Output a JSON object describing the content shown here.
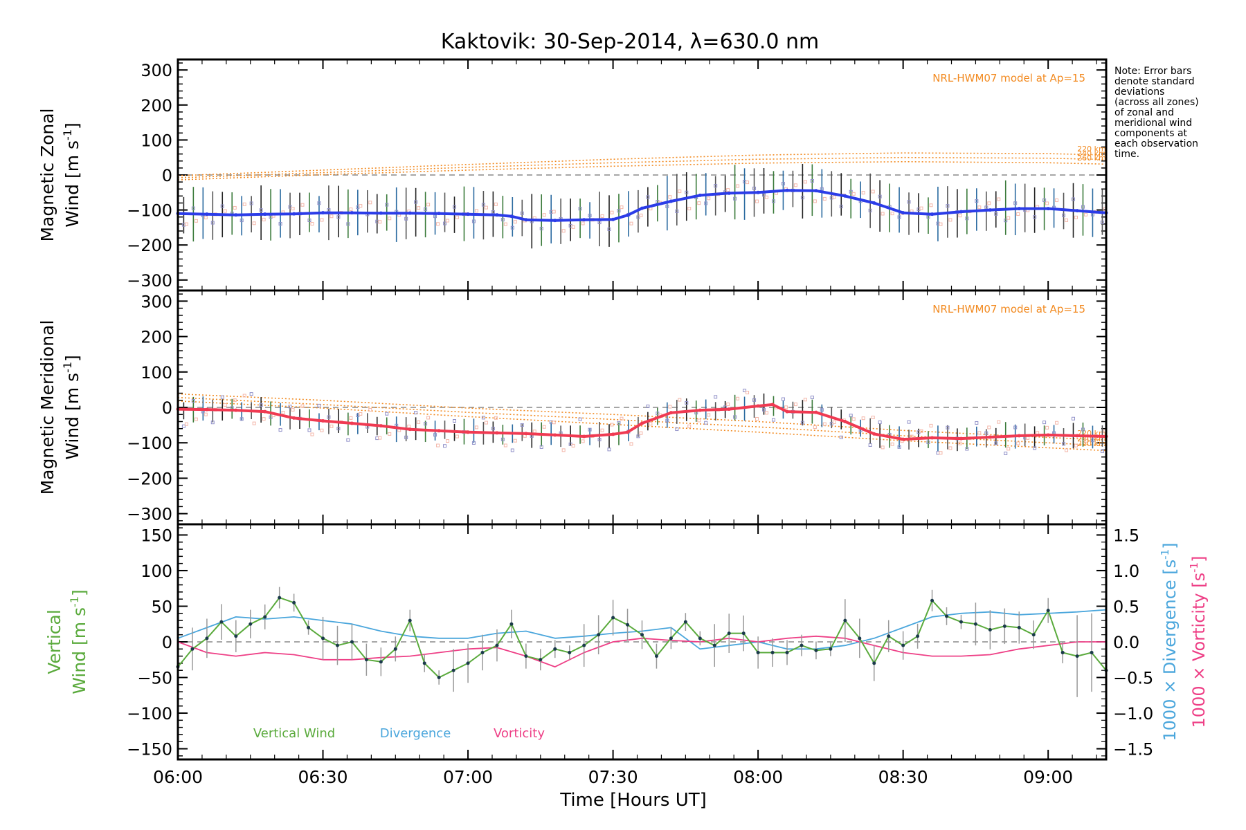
{
  "title": "Kaktovik: 30-Sep-2014, λ=630.0 nm",
  "note": [
    "Note: Error bars",
    "denote standard",
    "deviations",
    "(across all zones)",
    "of zonal and",
    "meridional wind",
    "components at",
    "each observation",
    "time."
  ],
  "x_axis": {
    "label": "Time [Hours UT]",
    "ticks": [
      "06:00",
      "06:30",
      "07:00",
      "07:30",
      "08:00",
      "08:30",
      "09:00"
    ],
    "tick_hours": [
      6.0,
      6.5,
      7.0,
      7.5,
      8.0,
      8.5,
      9.0
    ],
    "range_hours": [
      6.0,
      9.2
    ]
  },
  "colors": {
    "zonal": "#2b3ce8",
    "meridional": "#f03a52",
    "model": "#f28a20",
    "vertical": "#5aaa3c",
    "divergence": "#4aa6dc",
    "vorticity": "#ee3f86",
    "error_bar": "#222222",
    "zone_marker": "#9090c8"
  },
  "chart_data": [
    {
      "type": "line",
      "panel": "zonal",
      "ylabel_line1": "Magnetic Zonal",
      "ylabel_line2": "Wind",
      "ylabel_unit": "[m s",
      "ylabel_exp": "-1",
      "ylabel_close": "]",
      "ylim": [
        -330,
        330
      ],
      "yticks": [
        -300,
        -200,
        -100,
        0,
        100,
        200,
        300
      ],
      "ytick_labels": [
        "−300",
        "−200",
        "−100",
        "0",
        "100",
        "200",
        "300"
      ],
      "model_label": "NRL-HWM07 model at Ap=15",
      "model_series": [
        {
          "name": "220 km",
          "x": [
            6.0,
            6.5,
            7.0,
            7.5,
            8.0,
            8.5,
            9.0,
            9.2
          ],
          "y": [
            -2,
            14,
            30,
            45,
            57,
            63,
            61,
            57
          ]
        },
        {
          "name": "240 km",
          "x": [
            6.0,
            6.5,
            7.0,
            7.5,
            8.0,
            8.5,
            9.0,
            9.2
          ],
          "y": [
            -8,
            7,
            22,
            35,
            45,
            50,
            48,
            44
          ]
        },
        {
          "name": "260 km",
          "x": [
            6.0,
            6.5,
            7.0,
            7.5,
            8.0,
            8.5,
            9.0,
            9.2
          ],
          "y": [
            -14,
            1,
            14,
            25,
            34,
            38,
            35,
            31
          ]
        }
      ],
      "series": [
        {
          "name": "Magnetic Zonal Wind",
          "x": [
            6.0,
            6.1,
            6.2,
            6.3,
            6.4,
            6.5,
            6.6,
            6.7,
            6.8,
            6.9,
            7.0,
            7.1,
            7.15,
            7.2,
            7.3,
            7.4,
            7.5,
            7.55,
            7.6,
            7.7,
            7.8,
            7.9,
            8.0,
            8.1,
            8.2,
            8.3,
            8.4,
            8.5,
            8.6,
            8.7,
            8.8,
            8.9,
            9.0,
            9.1,
            9.2
          ],
          "y": [
            -110,
            -112,
            -114,
            -112,
            -111,
            -108,
            -108,
            -109,
            -109,
            -110,
            -112,
            -114,
            -118,
            -128,
            -130,
            -128,
            -127,
            -115,
            -95,
            -75,
            -58,
            -52,
            -50,
            -44,
            -45,
            -60,
            -80,
            -108,
            -112,
            -105,
            -100,
            -96,
            -96,
            -102,
            -108
          ]
        }
      ],
      "error_bar_sd": 65
    },
    {
      "type": "line",
      "panel": "meridional",
      "ylabel_line1": "Magnetic Meridional",
      "ylabel_line2": "Wind",
      "ylabel_unit": "[m s",
      "ylabel_exp": "-1",
      "ylabel_close": "]",
      "ylim": [
        -330,
        330
      ],
      "yticks": [
        -300,
        -200,
        -100,
        0,
        100,
        200,
        300
      ],
      "ytick_labels": [
        "−300",
        "−200",
        "−100",
        "0",
        "100",
        "200",
        "300"
      ],
      "model_label": "NRL-HWM07 model at Ap=15",
      "model_series": [
        {
          "name": "220 km",
          "x": [
            6.0,
            6.5,
            7.0,
            7.5,
            8.0,
            8.5,
            9.0,
            9.2
          ],
          "y": [
            38,
            20,
            -2,
            -20,
            -40,
            -65,
            -85,
            -92
          ]
        },
        {
          "name": "240 km",
          "x": [
            6.0,
            6.5,
            7.0,
            7.5,
            8.0,
            8.5,
            9.0,
            9.2
          ],
          "y": [
            28,
            8,
            -14,
            -34,
            -55,
            -80,
            -100,
            -108
          ]
        },
        {
          "name": "260 km",
          "x": [
            6.0,
            6.5,
            7.0,
            7.5,
            8.0,
            8.5,
            9.0,
            9.2
          ],
          "y": [
            18,
            -2,
            -26,
            -48,
            -70,
            -94,
            -114,
            -122
          ]
        }
      ],
      "series": [
        {
          "name": "Magnetic Meridional Wind",
          "x": [
            6.0,
            6.1,
            6.2,
            6.3,
            6.4,
            6.5,
            6.6,
            6.7,
            6.8,
            6.9,
            7.0,
            7.1,
            7.2,
            7.3,
            7.4,
            7.5,
            7.55,
            7.6,
            7.7,
            7.8,
            7.9,
            8.0,
            8.05,
            8.1,
            8.2,
            8.3,
            8.4,
            8.5,
            8.6,
            8.7,
            8.8,
            8.9,
            9.0,
            9.1,
            9.2
          ],
          "y": [
            -5,
            -6,
            -8,
            -12,
            -30,
            -38,
            -45,
            -52,
            -62,
            -66,
            -70,
            -72,
            -74,
            -78,
            -82,
            -76,
            -70,
            -45,
            -15,
            -8,
            -5,
            4,
            8,
            -12,
            -14,
            -40,
            -75,
            -90,
            -86,
            -88,
            -84,
            -80,
            -78,
            -80,
            -82
          ]
        }
      ],
      "error_bar_sd": 30
    },
    {
      "type": "line",
      "panel": "vertical",
      "ylabel_line1": "Vertical",
      "ylabel_line2": "Wind",
      "ylabel_unit": "[m s",
      "ylabel_exp": "-1",
      "ylabel_close": "]",
      "ylim": [
        -165,
        165
      ],
      "yticks": [
        -150,
        -100,
        -50,
        0,
        50,
        100,
        150
      ],
      "ytick_labels": [
        "−150",
        "−100",
        "−50",
        "0",
        "50",
        "100",
        "150"
      ],
      "y2lim": [
        -1.65,
        1.65
      ],
      "y2ticks": [
        -1.5,
        -1.0,
        -0.5,
        0.0,
        0.5,
        1.0,
        1.5
      ],
      "y2tick_labels": [
        "−1.5",
        "−1.0",
        "−0.5",
        "0.0",
        "0.5",
        "1.0",
        "1.5"
      ],
      "y2label_div": "1000 × Divergence",
      "y2label_vor": "1000 × Vorticity",
      "y2label_unit": "[s",
      "y2label_exp": "-1",
      "y2label_close": "]",
      "legend": [
        "Vertical Wind",
        "Divergence",
        "Vorticity"
      ],
      "series": [
        {
          "name": "Vertical Wind",
          "x": [
            6.0,
            6.05,
            6.1,
            6.15,
            6.2,
            6.25,
            6.3,
            6.35,
            6.4,
            6.45,
            6.5,
            6.55,
            6.6,
            6.65,
            6.7,
            6.75,
            6.8,
            6.85,
            6.9,
            6.95,
            7.0,
            7.05,
            7.1,
            7.15,
            7.2,
            7.25,
            7.3,
            7.35,
            7.4,
            7.45,
            7.5,
            7.55,
            7.6,
            7.65,
            7.7,
            7.75,
            7.8,
            7.85,
            7.9,
            7.95,
            8.0,
            8.05,
            8.1,
            8.15,
            8.2,
            8.25,
            8.3,
            8.35,
            8.4,
            8.45,
            8.5,
            8.55,
            8.6,
            8.65,
            8.7,
            8.75,
            8.8,
            8.85,
            8.9,
            8.95,
            9.0,
            9.05,
            9.1,
            9.15,
            9.2
          ],
          "y": [
            -35,
            -10,
            5,
            28,
            8,
            25,
            35,
            62,
            55,
            20,
            5,
            -5,
            0,
            -25,
            -28,
            -10,
            30,
            -30,
            -50,
            -40,
            -30,
            -15,
            -5,
            25,
            -20,
            -25,
            -10,
            -15,
            -5,
            10,
            34,
            24,
            10,
            -20,
            5,
            28,
            5,
            -5,
            12,
            12,
            -15,
            -15,
            -15,
            -5,
            -12,
            -10,
            30,
            5,
            -30,
            8,
            -5,
            8,
            58,
            36,
            28,
            25,
            17,
            22,
            20,
            10,
            44,
            -15,
            -20,
            -15,
            -40
          ]
        },
        {
          "name": "Divergence",
          "x": [
            6.0,
            6.1,
            6.2,
            6.3,
            6.4,
            6.5,
            6.6,
            6.7,
            6.8,
            6.9,
            7.0,
            7.1,
            7.2,
            7.3,
            7.4,
            7.5,
            7.6,
            7.7,
            7.8,
            7.9,
            8.0,
            8.1,
            8.2,
            8.3,
            8.4,
            8.5,
            8.6,
            8.7,
            8.8,
            8.9,
            9.0,
            9.1,
            9.2
          ],
          "y": [
            0.05,
            0.2,
            0.35,
            0.32,
            0.35,
            0.3,
            0.25,
            0.15,
            0.08,
            0.05,
            0.05,
            0.12,
            0.15,
            0.05,
            0.08,
            0.12,
            0.15,
            0.2,
            -0.1,
            -0.05,
            0.0,
            -0.1,
            -0.1,
            -0.05,
            0.05,
            0.2,
            0.35,
            0.4,
            0.42,
            0.38,
            0.4,
            0.42,
            0.45
          ]
        },
        {
          "name": "Vorticity",
          "x": [
            6.0,
            6.1,
            6.2,
            6.3,
            6.4,
            6.5,
            6.6,
            6.7,
            6.8,
            6.9,
            7.0,
            7.1,
            7.2,
            7.3,
            7.4,
            7.5,
            7.6,
            7.7,
            7.8,
            7.9,
            8.0,
            8.1,
            8.2,
            8.3,
            8.4,
            8.5,
            8.6,
            8.7,
            8.8,
            8.9,
            9.0,
            9.1,
            9.2
          ],
          "y": [
            0.0,
            -0.15,
            -0.2,
            -0.15,
            -0.18,
            -0.25,
            -0.25,
            -0.22,
            -0.2,
            -0.15,
            -0.1,
            -0.08,
            -0.2,
            -0.35,
            -0.15,
            0.0,
            0.05,
            0.02,
            0.0,
            0.05,
            0.0,
            0.05,
            0.08,
            0.05,
            -0.05,
            -0.15,
            -0.2,
            -0.2,
            -0.18,
            -0.1,
            -0.05,
            0.0,
            0.0
          ]
        }
      ]
    }
  ]
}
